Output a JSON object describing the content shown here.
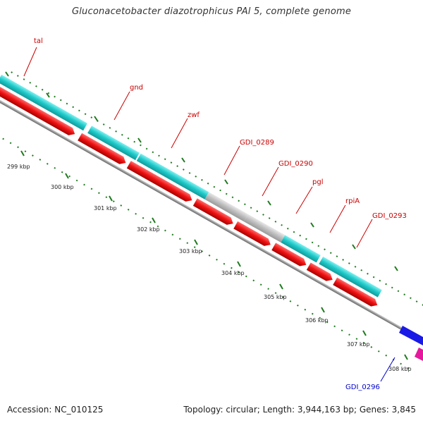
{
  "header": {
    "title": "Gluconacetobacter diazotrophicus PAl 5, complete genome"
  },
  "footer": {
    "accession": "Accession: NC_010125",
    "topology": "Topology: circular; Length: 3,944,163 bp; Genes: 3,845"
  },
  "colors": {
    "forward_cds": "#1ec8c8",
    "reverse_cds": "#ee1111",
    "other_feature": "#bdbdbd",
    "backbone": "#888888",
    "forward_label": "#cc0000",
    "reverse_label": "#0000cc",
    "tick": "#1e7a1e",
    "blue_feature": "#1a1ae6",
    "magenta_feature": "#e6199e"
  },
  "genes": [
    {
      "name": "tal",
      "strand": "forward"
    },
    {
      "name": "gnd",
      "strand": "forward"
    },
    {
      "name": "zwf",
      "strand": "forward"
    },
    {
      "name": "GDI_0289",
      "strand": "forward"
    },
    {
      "name": "GDI_0290",
      "strand": "forward"
    },
    {
      "name": "pgl",
      "strand": "forward"
    },
    {
      "name": "rpiA",
      "strand": "forward"
    },
    {
      "name": "GDI_0293",
      "strand": "forward"
    },
    {
      "name": "GDI_0296",
      "strand": "reverse"
    }
  ],
  "ticks": [
    {
      "label": "299 kbp"
    },
    {
      "label": "300 kbp"
    },
    {
      "label": "301 kbp"
    },
    {
      "label": "302 kbp"
    },
    {
      "label": "303 kbp"
    },
    {
      "label": "304 kbp"
    },
    {
      "label": "305 kbp"
    },
    {
      "label": "306 kbp"
    },
    {
      "label": "307 kbp"
    },
    {
      "label": "308 kbp"
    }
  ]
}
